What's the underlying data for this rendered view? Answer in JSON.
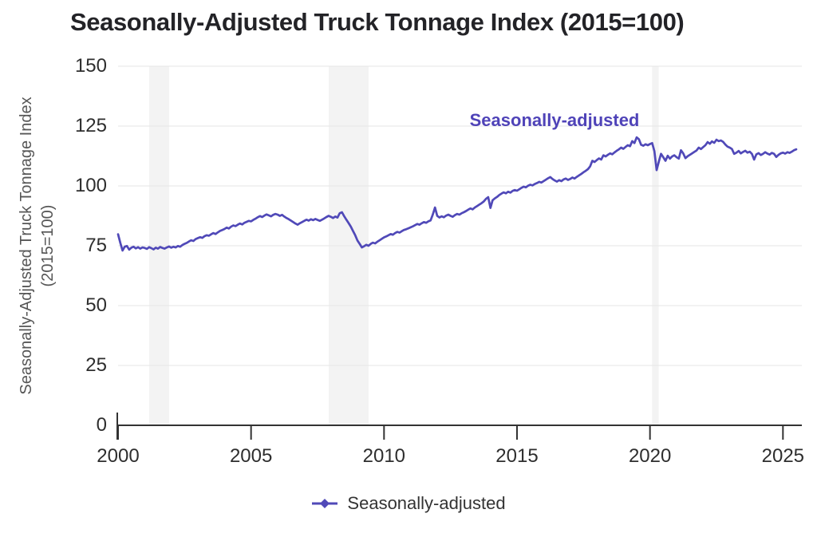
{
  "title": "Seasonally-Adjusted Truck Tonnage Index (2015=100)",
  "annotation": {
    "text": "Seasonally-adjusted"
  },
  "legend": {
    "label": "Seasonally-adjusted"
  },
  "colors": {
    "line": "#5049b8",
    "annotation": "#4f43b8",
    "grid": "#e9e9e9",
    "recession_band": "#f3f3f3",
    "axis": "#333333",
    "tick_text": "#2e2e2e",
    "title_text": "#232327",
    "y_axis_title_text": "#565656",
    "legend_text": "#333333"
  },
  "chart_data": {
    "type": "line",
    "title": "Seasonally-Adjusted Truck Tonnage Index (2015=100)",
    "ylabel_lines": [
      "Seasonally-Adjusted Truck Tonnage Index",
      "(2015=100)"
    ],
    "xlabel": "",
    "x_ticks": [
      2000,
      2005,
      2010,
      2015,
      2020,
      2025
    ],
    "y_ticks": [
      0,
      25,
      50,
      75,
      100,
      125,
      150
    ],
    "ylim": [
      0,
      150
    ],
    "xlim": [
      2000,
      2025.7
    ],
    "grid": "horizontal-only",
    "legend_position": "bottom-center",
    "annotation": {
      "text": "Seasonally-adjusted",
      "x": 2016.4,
      "y": 127
    },
    "recession_bands": [
      [
        2001.17,
        2001.92
      ],
      [
        2007.92,
        2009.42
      ],
      [
        2020.08,
        2020.33
      ]
    ],
    "series": [
      {
        "name": "Seasonally-adjusted",
        "frequency": "monthly",
        "start_year": 2000,
        "start_month": 1,
        "values": [
          79.8,
          76.2,
          73.0,
          74.6,
          74.9,
          73.4,
          74.2,
          74.6,
          73.9,
          74.4,
          73.8,
          74.3,
          74.1,
          73.7,
          74.4,
          74.0,
          73.5,
          74.2,
          73.8,
          74.5,
          74.1,
          73.8,
          74.3,
          74.7,
          74.2,
          74.6,
          74.3,
          74.9,
          74.6,
          75.3,
          75.8,
          76.2,
          76.8,
          77.3,
          77.0,
          77.8,
          78.2,
          78.6,
          78.3,
          79.0,
          79.4,
          79.2,
          79.8,
          80.3,
          79.9,
          80.6,
          81.2,
          81.6,
          82.0,
          82.6,
          82.2,
          83.0,
          83.5,
          83.2,
          83.8,
          84.3,
          83.9,
          84.6,
          85.0,
          85.4,
          85.2,
          85.8,
          86.3,
          86.9,
          87.4,
          87.0,
          87.6,
          88.1,
          87.7,
          87.3,
          87.9,
          88.3,
          88.0,
          87.5,
          87.9,
          87.2,
          86.6,
          86.1,
          85.5,
          84.9,
          84.3,
          83.8,
          84.4,
          84.9,
          85.4,
          85.9,
          85.5,
          86.1,
          85.7,
          86.2,
          85.8,
          85.4,
          85.9,
          86.4,
          87.0,
          87.5,
          87.1,
          86.6,
          87.2,
          86.8,
          88.6,
          89.0,
          87.4,
          85.9,
          84.5,
          83.0,
          81.2,
          79.4,
          77.2,
          75.8,
          74.3,
          74.8,
          75.4,
          75.0,
          75.8,
          76.3,
          76.0,
          76.7,
          77.3,
          77.9,
          78.5,
          78.9,
          79.4,
          79.9,
          79.6,
          80.3,
          80.8,
          80.5,
          81.1,
          81.6,
          81.9,
          82.3,
          82.7,
          83.1,
          83.6,
          84.1,
          83.8,
          84.4,
          84.9,
          84.6,
          85.2,
          85.6,
          88.0,
          91.0,
          87.5,
          86.8,
          87.3,
          86.9,
          87.6,
          88.0,
          87.5,
          87.1,
          87.8,
          88.3,
          88.0,
          88.6,
          89.0,
          89.5,
          90.1,
          90.6,
          90.2,
          91.0,
          91.6,
          92.2,
          92.8,
          93.5,
          94.6,
          95.3,
          90.8,
          94.0,
          94.8,
          95.4,
          96.2,
          96.8,
          97.3,
          96.9,
          97.6,
          97.2,
          97.9,
          98.3,
          98.0,
          98.6,
          99.2,
          99.7,
          99.4,
          100.1,
          100.5,
          100.2,
          100.8,
          101.2,
          101.7,
          101.4,
          102.0,
          102.6,
          103.2,
          103.7,
          102.9,
          102.3,
          101.8,
          102.4,
          102.0,
          102.7,
          103.1,
          102.5,
          102.9,
          103.5,
          103.1,
          103.8,
          104.4,
          105.0,
          105.7,
          106.3,
          107.0,
          108.2,
          110.5,
          110.0,
          110.8,
          111.5,
          111.0,
          112.8,
          112.3,
          113.0,
          113.6,
          113.2,
          114.0,
          114.7,
          115.3,
          116.0,
          115.5,
          116.3,
          117.0,
          116.6,
          118.7,
          117.9,
          120.3,
          119.5,
          117.2,
          116.8,
          117.4,
          117.0,
          117.5,
          117.9,
          114.5,
          106.6,
          110.2,
          113.4,
          112.0,
          110.5,
          112.6,
          111.4,
          112.3,
          112.8,
          112.0,
          111.4,
          114.9,
          113.6,
          111.6,
          112.4,
          113.0,
          113.6,
          114.2,
          114.8,
          116.0,
          115.4,
          116.2,
          117.0,
          118.3,
          117.6,
          118.6,
          118.0,
          119.3,
          118.7,
          119.0,
          118.4,
          117.3,
          116.4,
          116.0,
          115.4,
          113.4,
          113.9,
          114.6,
          113.6,
          114.2,
          114.7,
          113.9,
          114.3,
          113.4,
          111.0,
          113.2,
          113.7,
          112.9,
          113.4,
          114.1,
          113.5,
          113.1,
          113.8,
          113.4,
          112.1,
          113.0,
          113.6,
          113.9,
          113.5,
          114.1,
          113.8,
          114.3,
          114.9,
          115.3
        ]
      }
    ]
  }
}
